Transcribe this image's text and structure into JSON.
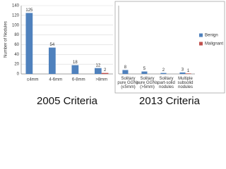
{
  "chart_data": {
    "type": "bar",
    "y_label": "Number of Nodules",
    "ylim": [
      0,
      140
    ],
    "yticks": [
      0,
      20,
      40,
      60,
      80,
      100,
      120,
      140
    ],
    "legend": [
      {
        "name": "Benign",
        "color": "#4f81bd"
      },
      {
        "name": "Malignant",
        "color": "#c0504d"
      }
    ],
    "panels": [
      {
        "title": "2005 Criteria",
        "categories": [
          "≤4mm",
          "4-6mm",
          "6-8mm",
          ">8mm"
        ],
        "series": [
          {
            "values": [
              125,
              54,
              18,
              12
            ]
          },
          {
            "values": [
              null,
              null,
              null,
              2
            ]
          }
        ]
      },
      {
        "title": "2013 Criteria",
        "categories": [
          "Solitary pure GGNs (≤5mm)",
          "Solitary pure GGNs (>5mm)",
          "Solitary part-solid nodules",
          "Multiple subsolid nodules"
        ],
        "series": [
          {
            "values": [
              8,
              5,
              2,
              3
            ]
          },
          {
            "values": [
              null,
              null,
              null,
              1
            ]
          }
        ]
      }
    ]
  }
}
